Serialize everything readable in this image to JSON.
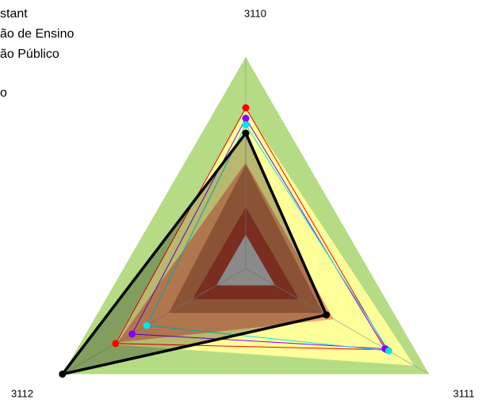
{
  "chart_data": {
    "type": "radar",
    "categories": [
      "3110",
      "3111",
      "3112"
    ],
    "rlim": [
      0,
      100
    ],
    "legend": [
      "stant",
      "ão de Ensino",
      "ão Público",
      "o"
    ],
    "bands": [
      {
        "color": "#b5dc84",
        "values": [
          100,
          100,
          100
        ]
      },
      {
        "color": "#ffff99",
        "values": [
          75,
          92,
          72
        ]
      },
      {
        "color": "#f4a46c",
        "values": [
          50,
          48,
          70
        ]
      },
      {
        "color": "#c0734a",
        "values": [
          49,
          42,
          42
        ]
      },
      {
        "color": "#a8402c",
        "values": [
          29,
          29,
          29
        ]
      },
      {
        "color": "#c0c0c0",
        "values": [
          16,
          16,
          16
        ]
      }
    ],
    "series": [
      {
        "color": "#ff0000",
        "values": [
          76,
          77,
          71
        ]
      },
      {
        "color": "#8000ff",
        "values": [
          71,
          76,
          62
        ]
      },
      {
        "color": "#00e5ee",
        "values": [
          68,
          78,
          54
        ]
      },
      {
        "color": "#000000",
        "values": [
          64,
          44,
          100
        ],
        "fill": true
      }
    ]
  }
}
